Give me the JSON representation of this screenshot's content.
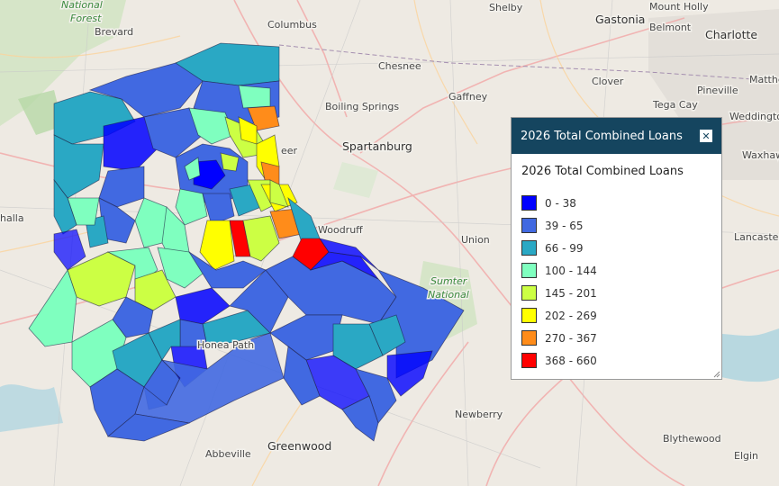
{
  "map": {
    "places": [
      {
        "name": "National",
        "type": "park"
      },
      {
        "name": "Forest",
        "type": "park"
      },
      {
        "name": "Brevard",
        "type": "town"
      },
      {
        "name": "Columbus",
        "type": "town"
      },
      {
        "name": "Shelby",
        "type": "town"
      },
      {
        "name": "Gastonia",
        "type": "city"
      },
      {
        "name": "Mount Holly",
        "type": "town"
      },
      {
        "name": "Belmont",
        "type": "town"
      },
      {
        "name": "Charlotte",
        "type": "city"
      },
      {
        "name": "Chesnee",
        "type": "town"
      },
      {
        "name": "Clover",
        "type": "town"
      },
      {
        "name": "Matthe",
        "type": "town"
      },
      {
        "name": "Gaffney",
        "type": "town"
      },
      {
        "name": "Pineville",
        "type": "town"
      },
      {
        "name": "Boiling Springs",
        "type": "town"
      },
      {
        "name": "Tega Cay",
        "type": "town"
      },
      {
        "name": "Weddingto",
        "type": "town"
      },
      {
        "name": "Spartanburg",
        "type": "city"
      },
      {
        "name": "Waxhaw",
        "type": "town"
      },
      {
        "name": "halla",
        "type": "town"
      },
      {
        "name": "Woodruff",
        "type": "town"
      },
      {
        "name": "Union",
        "type": "town"
      },
      {
        "name": "Lancaster",
        "type": "town"
      },
      {
        "name": "Sumter",
        "type": "park"
      },
      {
        "name": "National",
        "type": "park"
      },
      {
        "name": "Honea Path",
        "type": "town"
      },
      {
        "name": "Newberry",
        "type": "town"
      },
      {
        "name": "Abbeville",
        "type": "town"
      },
      {
        "name": "Greenwood",
        "type": "city"
      },
      {
        "name": "Blythewood",
        "type": "town"
      },
      {
        "name": "Elgin",
        "type": "town"
      },
      {
        "name": "eer",
        "type": "town"
      }
    ]
  },
  "legend": {
    "header_title": "2026 Total Combined Loans",
    "close_symbol": "✕",
    "title": "2026 Total Combined Loans",
    "classes": [
      {
        "label": "0 - 38",
        "color": "#0000ff"
      },
      {
        "label": "39 - 65",
        "color": "#4169e1"
      },
      {
        "label": "66 - 99",
        "color": "#2aa8c4"
      },
      {
        "label": "100 - 144",
        "color": "#7fffbf"
      },
      {
        "label": "145 - 201",
        "color": "#ccff44"
      },
      {
        "label": "202 - 269",
        "color": "#ffff00"
      },
      {
        "label": "270 - 367",
        "color": "#ff8c1a"
      },
      {
        "label": "368 - 660",
        "color": "#ff0000"
      }
    ]
  },
  "colors": {
    "header_bg": "#15455f",
    "base_map": "#eeeae3"
  }
}
